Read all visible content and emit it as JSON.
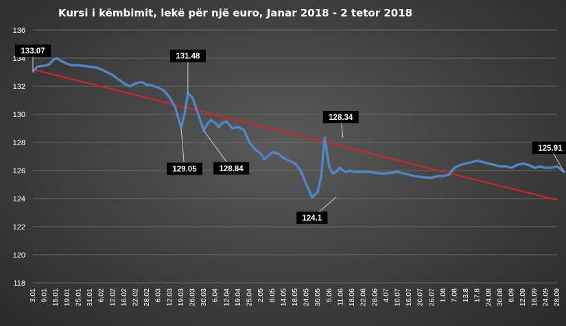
{
  "chart_data": {
    "type": "line",
    "title": "Kursi i këmbimit, lekë për një euro, Janar 2018 - 2 tetor 2018",
    "xlabel": "",
    "ylabel": "",
    "ylim": [
      118,
      136
    ],
    "yticks": [
      118,
      120,
      122,
      124,
      126,
      128,
      130,
      132,
      134,
      136
    ],
    "grid": true,
    "legend": "none",
    "colors": {
      "series": "#4f86c6",
      "trend": "#e02020",
      "callout_bg": "#000000",
      "callout_text": "#ffffff"
    },
    "categories": [
      "3.01",
      "9.01",
      "15.01",
      "19.01",
      "25.01",
      "31.01",
      "6.02",
      "12.02",
      "16.02",
      "22.02",
      "28.02",
      "6.03",
      "12.03",
      "19.03",
      "26.03",
      "30.03",
      "6.04",
      "12.04",
      "19.04",
      "25.04",
      "2.05",
      "8.05",
      "14.05",
      "18.05",
      "24.05",
      "30.05",
      "5.06",
      "11.06",
      "18.06",
      "22.06",
      "28.06",
      "4.07",
      "10.07",
      "16.07",
      "20.07",
      "26.07",
      "1.08",
      "7.08",
      "13.8",
      "17.8",
      "24.08",
      "30.08",
      "6.09",
      "12.09",
      "18.09",
      "24.09",
      "28.09"
    ],
    "series": [
      {
        "x": [
          0,
          0.4,
          0.8,
          1.2,
          1.5,
          1.8,
          2.1,
          2.5,
          3,
          3.5,
          4,
          4.5,
          5,
          5.5,
          6,
          6.5,
          7,
          7.5,
          8,
          8.5,
          9,
          9.5,
          10,
          10.5,
          11,
          11.5,
          12,
          12.5,
          13,
          13.3,
          13.6,
          14,
          14.3,
          14.6,
          15,
          15.3,
          15.6,
          16,
          16.3,
          16.6,
          17,
          17.5,
          18,
          18.5,
          19,
          19.5,
          20,
          20.3,
          20.6,
          21,
          21.5,
          22,
          22.5,
          23,
          23.5,
          24,
          24.5,
          25,
          25.3,
          25.6,
          26,
          26.3,
          26.6,
          26.9,
          27.2,
          27.5,
          27.8,
          28.1,
          28.5,
          29,
          29.5,
          30,
          30.5,
          31,
          31.5,
          32,
          32.5,
          33,
          33.5,
          34,
          34.5,
          35,
          35.5,
          36,
          36.5,
          37,
          37.5,
          38,
          38.5,
          39,
          39.5,
          40,
          40.5,
          41,
          41.5,
          42,
          42.5,
          43,
          43.5,
          44,
          44.5,
          45,
          45.5,
          46,
          46.3,
          46.6
        ],
        "y": [
          133.07,
          133.4,
          133.45,
          133.5,
          133.6,
          133.9,
          134.0,
          133.8,
          133.6,
          133.5,
          133.5,
          133.45,
          133.4,
          133.35,
          133.2,
          133.0,
          132.8,
          132.5,
          132.2,
          132.0,
          132.2,
          132.3,
          132.1,
          132.05,
          131.9,
          131.7,
          131.2,
          130.5,
          129.05,
          130.0,
          131.48,
          131.2,
          130.5,
          129.8,
          128.84,
          129.3,
          129.6,
          129.4,
          129.1,
          129.4,
          129.5,
          129.0,
          129.1,
          128.9,
          128.0,
          127.5,
          127.2,
          126.8,
          127.0,
          127.3,
          127.2,
          126.9,
          126.7,
          126.5,
          126.0,
          125.0,
          124.1,
          124.5,
          125.6,
          128.34,
          126.3,
          125.8,
          125.9,
          126.2,
          126.0,
          125.9,
          126.0,
          125.9,
          125.9,
          125.9,
          125.9,
          125.85,
          125.8,
          125.8,
          125.85,
          125.9,
          125.8,
          125.7,
          125.6,
          125.55,
          125.5,
          125.5,
          125.6,
          125.6,
          125.7,
          126.2,
          126.4,
          126.5,
          126.6,
          126.7,
          126.6,
          126.5,
          126.4,
          126.3,
          126.3,
          126.2,
          126.4,
          126.5,
          126.4,
          126.2,
          126.3,
          126.2,
          126.2,
          126.3,
          126.1,
          125.91
        ],
        "trend": {
          "start": 133.2,
          "end": 123.9
        }
      }
    ],
    "annotations": [
      {
        "label": "133.07",
        "x": 0,
        "y": 133.07
      },
      {
        "label": "131.48",
        "x": 13.6,
        "y": 131.48
      },
      {
        "label": "129.05",
        "x": 13.0,
        "y": 129.05
      },
      {
        "label": "128.84",
        "x": 15.0,
        "y": 128.84
      },
      {
        "label": "124.1",
        "x": 26.6,
        "y": 124.1
      },
      {
        "label": "128.34",
        "x": 27.2,
        "y": 128.34
      },
      {
        "label": "125.91",
        "x": 46.6,
        "y": 125.91
      }
    ]
  }
}
